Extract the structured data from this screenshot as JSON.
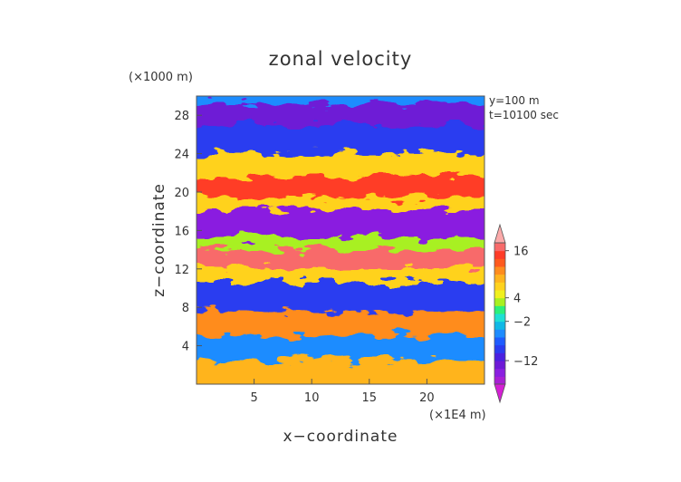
{
  "chart_data": {
    "type": "heatmap",
    "title": "zonal velocity",
    "xlabel": "x−coordinate",
    "ylabel": "z−coordinate",
    "x_unit": "(×1E4 m)",
    "y_unit": "(×1000 m)",
    "annotations": [
      "y=100 m",
      "t=10100 sec"
    ],
    "xlim": [
      0,
      25
    ],
    "ylim": [
      0,
      30
    ],
    "x_ticks": [
      5,
      10,
      15,
      20
    ],
    "x_tick_labels": [
      "5",
      "10",
      "15",
      "20"
    ],
    "y_ticks": [
      4,
      8,
      12,
      16,
      20,
      24,
      28
    ],
    "y_tick_labels": [
      "4",
      "8",
      "12",
      "16",
      "20",
      "24",
      "28"
    ],
    "colorbar": {
      "levels": [
        -20,
        -18,
        -16,
        -14,
        -12,
        -10,
        -8,
        -6,
        -4,
        -2,
        0,
        2,
        4,
        6,
        8,
        10,
        12,
        14,
        16,
        18,
        20
      ],
      "tick_values": [
        16,
        4,
        -2,
        -12
      ],
      "tick_labels": [
        "16",
        "4",
        "−2",
        "−12"
      ],
      "colors": [
        "#d41fd4",
        "#a81fd4",
        "#8a1fe0",
        "#6e1ad6",
        "#4a20e0",
        "#2a3cf0",
        "#1e5cff",
        "#1e8cff",
        "#10b8e6",
        "#1ee0d4",
        "#2cf07a",
        "#a8f020",
        "#f0f01e",
        "#ffd21e",
        "#ffb41e",
        "#ff8c1e",
        "#ff5a1e",
        "#ff3c28",
        "#f86a6a",
        "#fcaaaa"
      ]
    },
    "bands": [
      {
        "z": [
          28.6,
          30
        ],
        "x": [
          0,
          25
        ],
        "value": -6,
        "note": "mixed"
      },
      {
        "z": [
          26.5,
          28.6
        ],
        "x": [
          0,
          25
        ],
        "value": -14
      },
      {
        "z": [
          23.5,
          26.5
        ],
        "x": [
          0,
          25
        ],
        "value": -10
      },
      {
        "z": [
          21.0,
          23.5
        ],
        "x": [
          0,
          25
        ],
        "value": 6
      },
      {
        "z": [
          18.8,
          21.0
        ],
        "x": [
          0,
          25
        ],
        "value": 14
      },
      {
        "z": [
          17.6,
          18.8
        ],
        "x": [
          0,
          25
        ],
        "value": 6
      },
      {
        "z": [
          14.8,
          17.6
        ],
        "x": [
          0,
          25
        ],
        "value": -16
      },
      {
        "z": [
          13.4,
          14.8
        ],
        "x": [
          0,
          25
        ],
        "value": 2
      },
      {
        "z": [
          11.6,
          13.4
        ],
        "x": [
          0,
          25
        ],
        "value": 16
      },
      {
        "z": [
          10.0,
          11.6
        ],
        "x": [
          0,
          25
        ],
        "value": 6
      },
      {
        "z": [
          7.0,
          10.0
        ],
        "x": [
          0,
          25
        ],
        "value": -10
      },
      {
        "z": [
          4.5,
          7.0
        ],
        "x": [
          0,
          25
        ],
        "value": 10
      },
      {
        "z": [
          2.0,
          4.5
        ],
        "x": [
          0,
          25
        ],
        "value": -6
      },
      {
        "z": [
          0,
          2.0
        ],
        "x": [
          0,
          25
        ],
        "value": 8
      }
    ]
  }
}
